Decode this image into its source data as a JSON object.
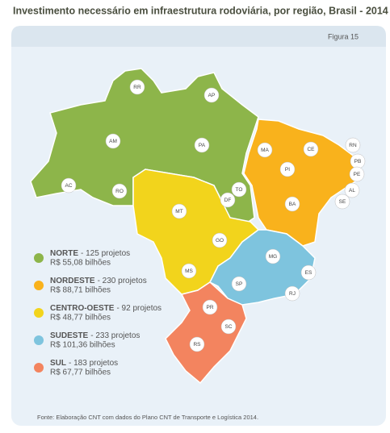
{
  "header": {
    "title": "Investimento necessário em infraestrutura rodoviária, por região, Brasil - 2014",
    "figure": "Figura 15"
  },
  "regions": [
    {
      "name": "NORTE",
      "projects": "- 125 projetos",
      "investment": "R$ 55,08 bilhões",
      "color": "#8db54a"
    },
    {
      "name": "NORDESTE",
      "projects": "- 230 projetos",
      "investment": "R$ 88,71 bilhões",
      "color": "#f9b21c"
    },
    {
      "name": "CENTRO-OESTE",
      "projects": "- 92 projetos",
      "investment": "R$ 48,77 bilhões",
      "color": "#f2d41c"
    },
    {
      "name": "SUDESTE",
      "projects": "- 233 projetos",
      "investment": "R$ 101,36 bilhões",
      "color": "#7ec4de"
    },
    {
      "name": "SUL",
      "projects": "- 183 projetos",
      "investment": "R$ 67,77 bilhões",
      "color": "#f3845f"
    }
  ],
  "states": [
    {
      "label": "RR"
    },
    {
      "label": "AP"
    },
    {
      "label": "AM"
    },
    {
      "label": "PA"
    },
    {
      "label": "AC"
    },
    {
      "label": "RO"
    },
    {
      "label": "TO"
    },
    {
      "label": "MA"
    },
    {
      "label": "CE"
    },
    {
      "label": "RN"
    },
    {
      "label": "PB"
    },
    {
      "label": "PI"
    },
    {
      "label": "PE"
    },
    {
      "label": "AL"
    },
    {
      "label": "SE"
    },
    {
      "label": "BA"
    },
    {
      "label": "MT"
    },
    {
      "label": "DF"
    },
    {
      "label": "GO"
    },
    {
      "label": "MS"
    },
    {
      "label": "MG"
    },
    {
      "label": "ES"
    },
    {
      "label": "SP"
    },
    {
      "label": "RJ"
    },
    {
      "label": "PR"
    },
    {
      "label": "SC"
    },
    {
      "label": "RS"
    }
  ],
  "source": "Fonte: Elaboração CNT com dados do Plano CNT de Transporte e Logística 2014."
}
